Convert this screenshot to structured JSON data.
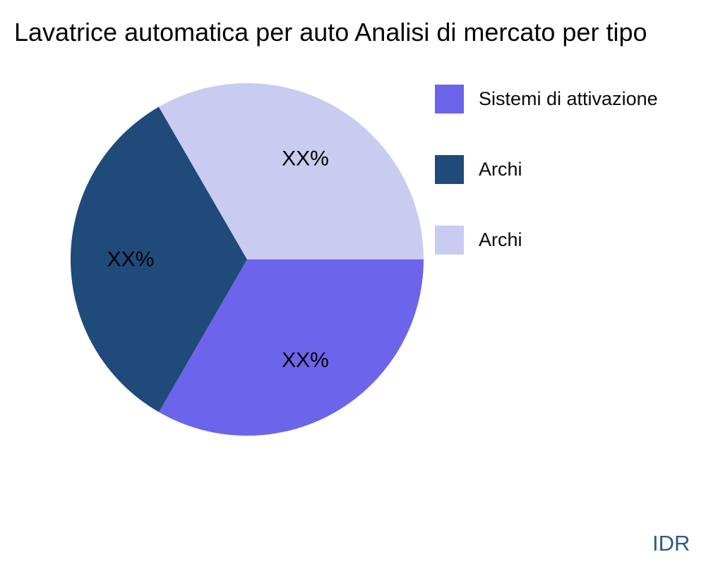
{
  "chart_data": {
    "type": "pie",
    "title": "Lavatrice automatica per auto Analisi di mercato per tipo",
    "slices": [
      {
        "label": "Sistemi di attivazione",
        "value": 33.33,
        "display_pct": "XX%",
        "color": "#6D64EC"
      },
      {
        "label": "Archi",
        "value": 33.33,
        "display_pct": "XX%",
        "color": "#1F4A7A"
      },
      {
        "label": "Archi",
        "value": 33.34,
        "display_pct": "XX%",
        "color": "#CACBF0"
      }
    ],
    "start_angle_deg": 0,
    "direction": "clockwise",
    "legend_position": "right",
    "background": "#FFFFFF",
    "label_color": "#000000",
    "grid": false
  },
  "watermark": {
    "text": "IDR",
    "color": "#2E5A8A"
  }
}
